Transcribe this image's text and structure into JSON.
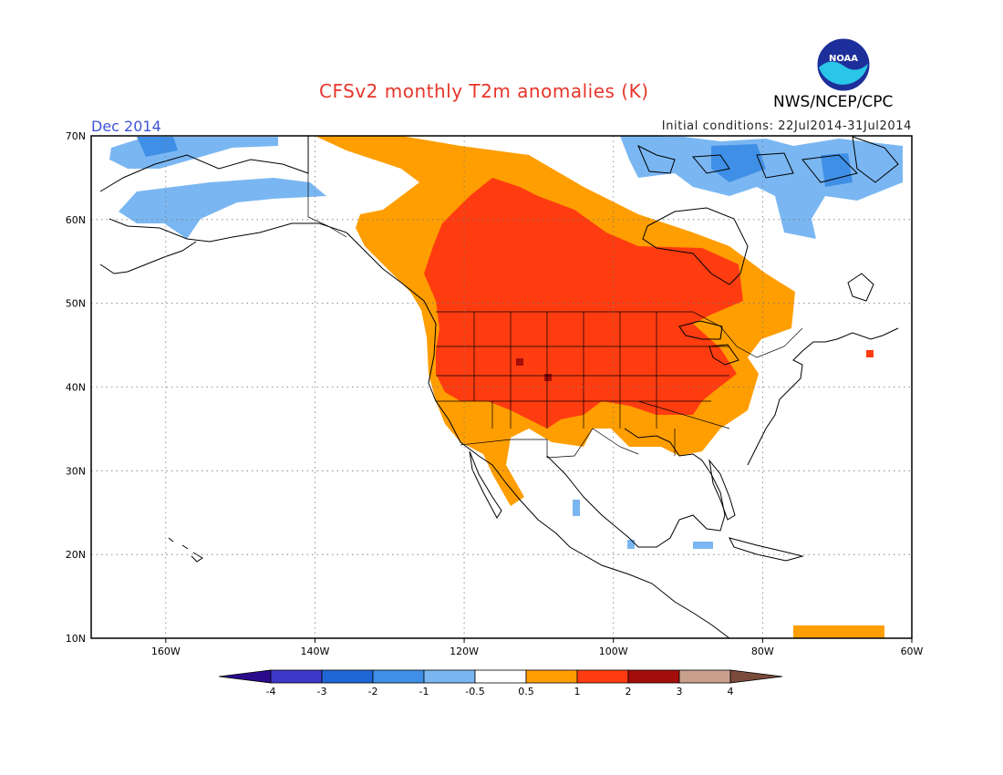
{
  "header": {
    "title": "CFSv2 monthly T2m anomalies (K)",
    "agency": "NWS/NCEP/CPC",
    "logo_text": "NOAA",
    "target_month": "Dec 2014",
    "initial_conditions": "Initial conditions: 22Jul2014-31Jul2014"
  },
  "map": {
    "projection": "lat-lon",
    "lon_range": [
      -170,
      -60
    ],
    "lat_range": [
      10,
      70
    ],
    "lat_labels": [
      "70N",
      "60N",
      "50N",
      "40N",
      "30N",
      "20N",
      "10N"
    ],
    "lon_labels": [
      "160W",
      "140W",
      "120W",
      "100W",
      "80W",
      "60W"
    ],
    "grid": "dotted",
    "anomaly_regions": [
      {
        "name": "western-us-central-canada-warm",
        "category": "1 to 2 K"
      },
      {
        "name": "northern-alaska-and-south-us-fringe",
        "category": "0.5 to 1 K"
      },
      {
        "name": "western-alaska-cool",
        "category": "-1 to -0.5 K"
      },
      {
        "name": "arctic-archipelago-cool",
        "category": "-1 to -0.5 K"
      },
      {
        "name": "rockies-hot-spots",
        "category": "2 to 3 K"
      }
    ]
  },
  "legend": {
    "labels": [
      "-4",
      "-3",
      "-2",
      "-1",
      "-0.5",
      "0.5",
      "1",
      "2",
      "3",
      "4"
    ],
    "colors": [
      "#2b0a8c",
      "#3f37c8",
      "#1f66d6",
      "#3f8fe6",
      "#7ab7f2",
      "#ffffff",
      "#ff9e00",
      "#ff3c10",
      "#a50d0a",
      "#c9a08c",
      "#7a4a3a"
    ]
  }
}
